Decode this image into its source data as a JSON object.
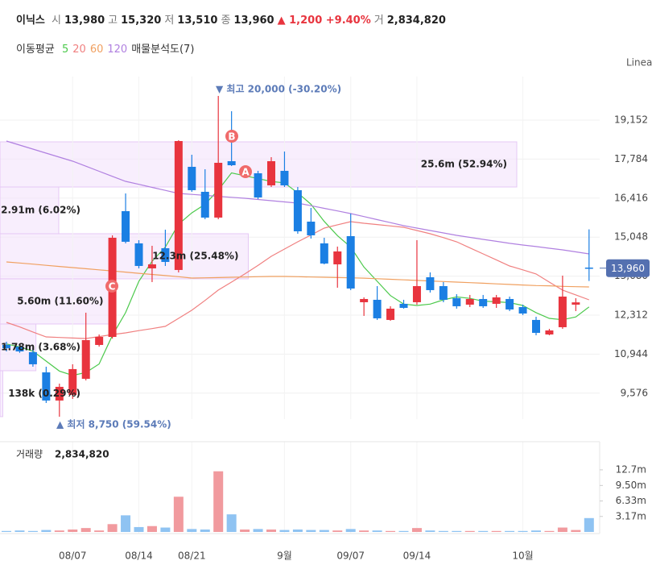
{
  "header": {
    "name": "이닉스",
    "fields": [
      {
        "label": "시",
        "value": "13,980"
      },
      {
        "label": "고",
        "value": "15,320"
      },
      {
        "label": "저",
        "value": "13,510"
      },
      {
        "label": "종",
        "value": "13,960"
      }
    ],
    "change": "▲ 1,200 +9.40%",
    "volume_label": "거",
    "volume": "2,834,820"
  },
  "chart_data": [
    {
      "type": "candlestick",
      "legend_title": "이동평균",
      "profile_title": "매물분석도(7)",
      "scale_label": "Linea",
      "categories": [
        null,
        null,
        null,
        null,
        null,
        "08/07",
        null,
        null,
        null,
        null,
        "08/14",
        null,
        null,
        null,
        "08/21",
        null,
        null,
        null,
        null,
        null,
        null,
        "9월",
        null,
        null,
        null,
        null,
        "09/07",
        null,
        null,
        null,
        null,
        "09/14",
        null,
        null,
        null,
        null,
        null,
        null,
        null,
        "10월",
        null,
        null,
        null,
        null,
        null
      ],
      "open": [
        11267,
        11210,
        11013,
        10306,
        9318,
        9515,
        10080,
        11267,
        11549,
        15959,
        14829,
        13952,
        14659,
        13896,
        17513,
        16637,
        15733,
        17711,
        17259,
        17287,
        16863,
        17372,
        16694,
        15591,
        14829,
        14093,
        15082,
        12765,
        12850,
        12144,
        12709,
        12765,
        13641,
        13330,
        12907,
        12680,
        12878,
        12709,
        12878,
        12595,
        12144,
        11634,
        11889,
        12680,
        13980
      ],
      "high": [
        11380,
        11300,
        11154,
        10504,
        9911,
        10589,
        12398,
        11634,
        15111,
        16580,
        14941,
        14744,
        15309,
        18445,
        17937,
        17428,
        20000,
        19463,
        17485,
        17372,
        17852,
        18050,
        16806,
        16072,
        15026,
        14716,
        15874,
        12935,
        13330,
        12624,
        12850,
        14941,
        13811,
        13472,
        13048,
        13020,
        13020,
        13020,
        12963,
        12680,
        12256,
        11832,
        13698,
        12907,
        15320
      ],
      "low": [
        11041,
        10990,
        10504,
        9232,
        8750,
        9374,
        10024,
        11210,
        11492,
        14829,
        13952,
        13472,
        14037,
        13811,
        16637,
        15676,
        15676,
        17541,
        17202,
        16382,
        16806,
        16806,
        15167,
        14998,
        14093,
        13274,
        13189,
        12285,
        12144,
        12115,
        12539,
        12680,
        13104,
        12765,
        12539,
        12595,
        12567,
        12567,
        12454,
        12313,
        11606,
        11606,
        11832,
        12454,
        13510
      ],
      "close": [
        11154,
        11040,
        10589,
        9318,
        9798,
        10420,
        11436,
        11549,
        15026,
        14885,
        14037,
        14093,
        14178,
        18417,
        16694,
        15733,
        17654,
        17569,
        17372,
        16439,
        17711,
        16863,
        15252,
        15111,
        14122,
        14546,
        13246,
        12878,
        12200,
        12539,
        12567,
        13330,
        13189,
        12850,
        12624,
        12878,
        12624,
        12935,
        12511,
        12369,
        11691,
        11776,
        12963,
        12760,
        13960
      ],
      "up_color": "#e8343e",
      "down_color": "#1b7fe3",
      "series": [
        {
          "name": "5",
          "color": "#4cc94c",
          "values": [
            11300,
            11200,
            11050,
            10700,
            10350,
            10200,
            10300,
            10600,
            11600,
            12400,
            13500,
            14200,
            14700,
            15500,
            15900,
            16200,
            16700,
            17300,
            17200,
            17100,
            17000,
            16950,
            16600,
            16200,
            15600,
            15100,
            14700,
            14000,
            13500,
            13000,
            12700,
            12650,
            12700,
            12850,
            12950,
            12900,
            12800,
            12780,
            12750,
            12650,
            12400,
            12200,
            12150,
            12250,
            12600
          ]
        },
        {
          "name": "20",
          "color": "#f08080",
          "values": [
            12059,
            11900,
            11720,
            11549,
            11530,
            11510,
            11492,
            11560,
            11630,
            11690,
            11770,
            11840,
            11918,
            12200,
            12483,
            12830,
            13190,
            13470,
            13755,
            14060,
            14376,
            14630,
            14885,
            15120,
            15365,
            15480,
            15591,
            15535,
            15490,
            15440,
            15394,
            15280,
            15168,
            15030,
            14885,
            14670,
            14461,
            14250,
            14037,
            13900,
            13755,
            13470,
            13190,
            13020,
            12850
          ]
        },
        {
          "name": "60",
          "color": "#f0a060",
          "values": [
            14178,
            14140,
            14100,
            14060,
            14020,
            13980,
            13940,
            13900,
            13860,
            13820,
            13780,
            13740,
            13700,
            13660,
            13613,
            13620,
            13630,
            13640,
            13650,
            13660,
            13670,
            13670,
            13660,
            13650,
            13640,
            13630,
            13620,
            13610,
            13590,
            13570,
            13550,
            13530,
            13510,
            13490,
            13470,
            13450,
            13430,
            13410,
            13390,
            13370,
            13350,
            13340,
            13320,
            13310,
            13300
          ]
        },
        {
          "name": "120",
          "color": "#b080e0",
          "values": [
            18417,
            18276,
            18135,
            17994,
            17852,
            17711,
            17534,
            17357,
            17180,
            17004,
            16898,
            16792,
            16686,
            16580,
            16546,
            16512,
            16478,
            16444,
            16410,
            16368,
            16325,
            16283,
            16241,
            16149,
            16057,
            15966,
            15874,
            15768,
            15662,
            15556,
            15450,
            15365,
            15280,
            15196,
            15111,
            15040,
            14970,
            14900,
            14829,
            14772,
            14716,
            14659,
            14602,
            14532,
            14461
          ]
        }
      ],
      "ylim": [
        8666,
        20678
      ],
      "yticks": [
        {
          "value": 9576,
          "label": "9,576"
        },
        {
          "value": 10944,
          "label": "10,944"
        },
        {
          "value": 12312,
          "label": "12,312"
        },
        {
          "value": 13680,
          "label": "13,680"
        },
        {
          "value": 15048,
          "label": "15,048"
        },
        {
          "value": 16416,
          "label": "16,416"
        },
        {
          "value": 17784,
          "label": "17,784"
        },
        {
          "value": 19152,
          "label": "19,152"
        }
      ],
      "grid": true,
      "price_tag": {
        "value": 13960,
        "label": "13,960"
      },
      "max_annotation": {
        "value": 20000,
        "label": "▼ 최고 20,000 (-30.20%)"
      },
      "min_annotation": {
        "value": 8750,
        "label": "▲ 최저 8,750 (59.54%)"
      },
      "markers": [
        "A",
        "B",
        "C"
      ],
      "volume_profile": {
        "bins": [
          8753,
          10363,
          12002,
          13585,
          15167,
          16806,
          18389
        ],
        "values": [
          138000,
          1780000,
          5600000,
          12300000,
          2910000,
          25600000
        ],
        "value_labels": [
          "138k (0.29%)",
          "1.78m (3.68%)",
          "5.60m (11.60%)",
          "12.3m (25.48%)",
          "2.91m (6.02%)",
          "25.6m (52.94%)"
        ],
        "color": "#f3e3fb",
        "edge_color": "#e6c8f5"
      }
    },
    {
      "type": "bar",
      "title": "거래량",
      "value_label": "2,834,820",
      "values": [
        200000,
        300000,
        200000,
        400000,
        300000,
        500000,
        800000,
        300000,
        1600000,
        3400000,
        1000000,
        1200000,
        900000,
        7200000,
        600000,
        500000,
        12400000,
        3600000,
        500000,
        600000,
        500000,
        400000,
        500000,
        400000,
        400000,
        300000,
        600000,
        300000,
        300000,
        200000,
        200000,
        800000,
        300000,
        200000,
        200000,
        200000,
        200000,
        200000,
        200000,
        200000,
        300000,
        200000,
        900000,
        400000,
        2834820
      ],
      "up_color": "#f19a9e",
      "down_color": "#8fc3f2",
      "ylim": [
        0,
        17300000
      ],
      "yticks": [
        {
          "value": 3170000,
          "label": "3.17m"
        },
        {
          "value": 6330000,
          "label": "6.33m"
        },
        {
          "value": 9500000,
          "label": "9.50m"
        },
        {
          "value": 12700000,
          "label": "12.7m"
        }
      ]
    }
  ]
}
